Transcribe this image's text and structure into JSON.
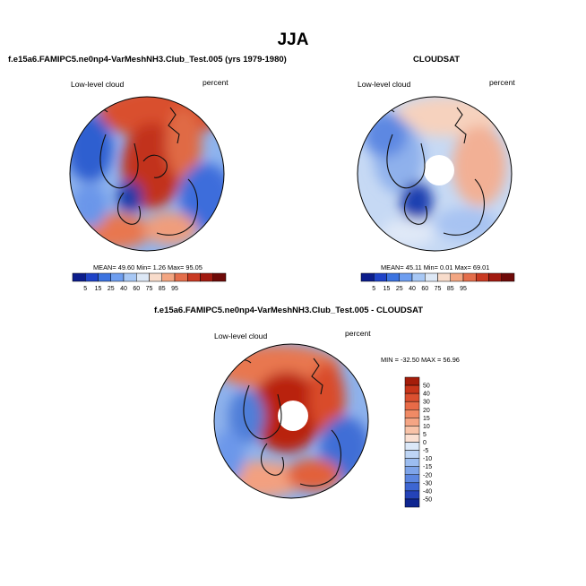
{
  "title": "JJA",
  "panels": [
    {
      "id": "model",
      "title": "f.e15a6.FAMIPC5.ne0np4-VarMeshNH3.Club_Test.005 (yrs 1979-1980)",
      "variable": "Low-level cloud",
      "units": "percent",
      "stats": {
        "mean_label": "MEAN=",
        "mean": "49.60",
        "min_label": "Min=",
        "min": "1.26",
        "max_label": "Max=",
        "max": "95.05"
      }
    },
    {
      "id": "obs",
      "title": "CLOUDSAT",
      "variable": "Low-level cloud",
      "units": "percent",
      "stats": {
        "mean_label": "MEAN=",
        "mean": "45.11",
        "min_label": "Min=",
        "min": "0.01",
        "max_label": "Max=",
        "max": "69.01"
      }
    },
    {
      "id": "diff",
      "title": "f.e15a6.FAMIPC5.ne0np4-VarMeshNH3.Club_Test.005 - CLOUDSAT",
      "variable": "Low-level cloud",
      "units": "percent",
      "minmax_text": "MIN = -32.50 MAX =  56.96"
    }
  ],
  "chart_data": [
    {
      "type": "heatmap",
      "projection": "north polar stereographic",
      "title": "f.e15a6.FAMIPC5.ne0np4-VarMeshNH3.Club_Test.005 (yrs 1979-1980)",
      "field": "Low-level cloud",
      "units": "percent",
      "mean": 49.6,
      "min": 1.26,
      "max": 95.05,
      "colorbar_ticks": [
        "5",
        "15",
        "25",
        "40",
        "60",
        "75",
        "85",
        "95"
      ],
      "colorbar_colors": [
        "#0c1d8c",
        "#1f43c8",
        "#3c73e0",
        "#6e9ef0",
        "#a8c8f5",
        "#dde8f6",
        "#f8dccb",
        "#f3a682",
        "#e46e4b",
        "#c93a22",
        "#a21a10",
        "#6e0a08"
      ]
    },
    {
      "type": "heatmap",
      "projection": "north polar stereographic",
      "title": "CLOUDSAT",
      "field": "Low-level cloud",
      "units": "percent",
      "mean": 45.11,
      "min": 0.01,
      "max": 69.01,
      "colorbar_ticks": [
        "5",
        "15",
        "25",
        "40",
        "60",
        "75",
        "85",
        "95"
      ],
      "colorbar_colors": [
        "#0c1d8c",
        "#1f43c8",
        "#3c73e0",
        "#6e9ef0",
        "#a8c8f5",
        "#dde8f6",
        "#f8dccb",
        "#f3a682",
        "#e46e4b",
        "#c93a22",
        "#a21a10",
        "#6e0a08"
      ]
    },
    {
      "type": "heatmap",
      "projection": "north polar stereographic",
      "title": "f.e15a6.FAMIPC5.ne0np4-VarMeshNH3.Club_Test.005 - CLOUDSAT",
      "field": "Low-level cloud",
      "units": "percent",
      "min": -32.5,
      "max": 56.96,
      "colorbar_ticks": [
        "50",
        "40",
        "30",
        "20",
        "15",
        "10",
        "5",
        "0",
        "-5",
        "-10",
        "-15",
        "-20",
        "-30",
        "-40",
        "-50"
      ],
      "colorbar_colors": [
        "#a51d0a",
        "#c8351a",
        "#db5030",
        "#e86b48",
        "#f08a65",
        "#f5a584",
        "#f9c3a8",
        "#fbe0d2",
        "#dbe8f8",
        "#bed5f5",
        "#9cbdf0",
        "#7ea4e9",
        "#5c86e0",
        "#3d66d2",
        "#2443b8",
        "#0f2690"
      ]
    }
  ],
  "colors": {
    "warm": "#c93a22",
    "cool": "#2f5fd0",
    "coast": "#111111"
  }
}
